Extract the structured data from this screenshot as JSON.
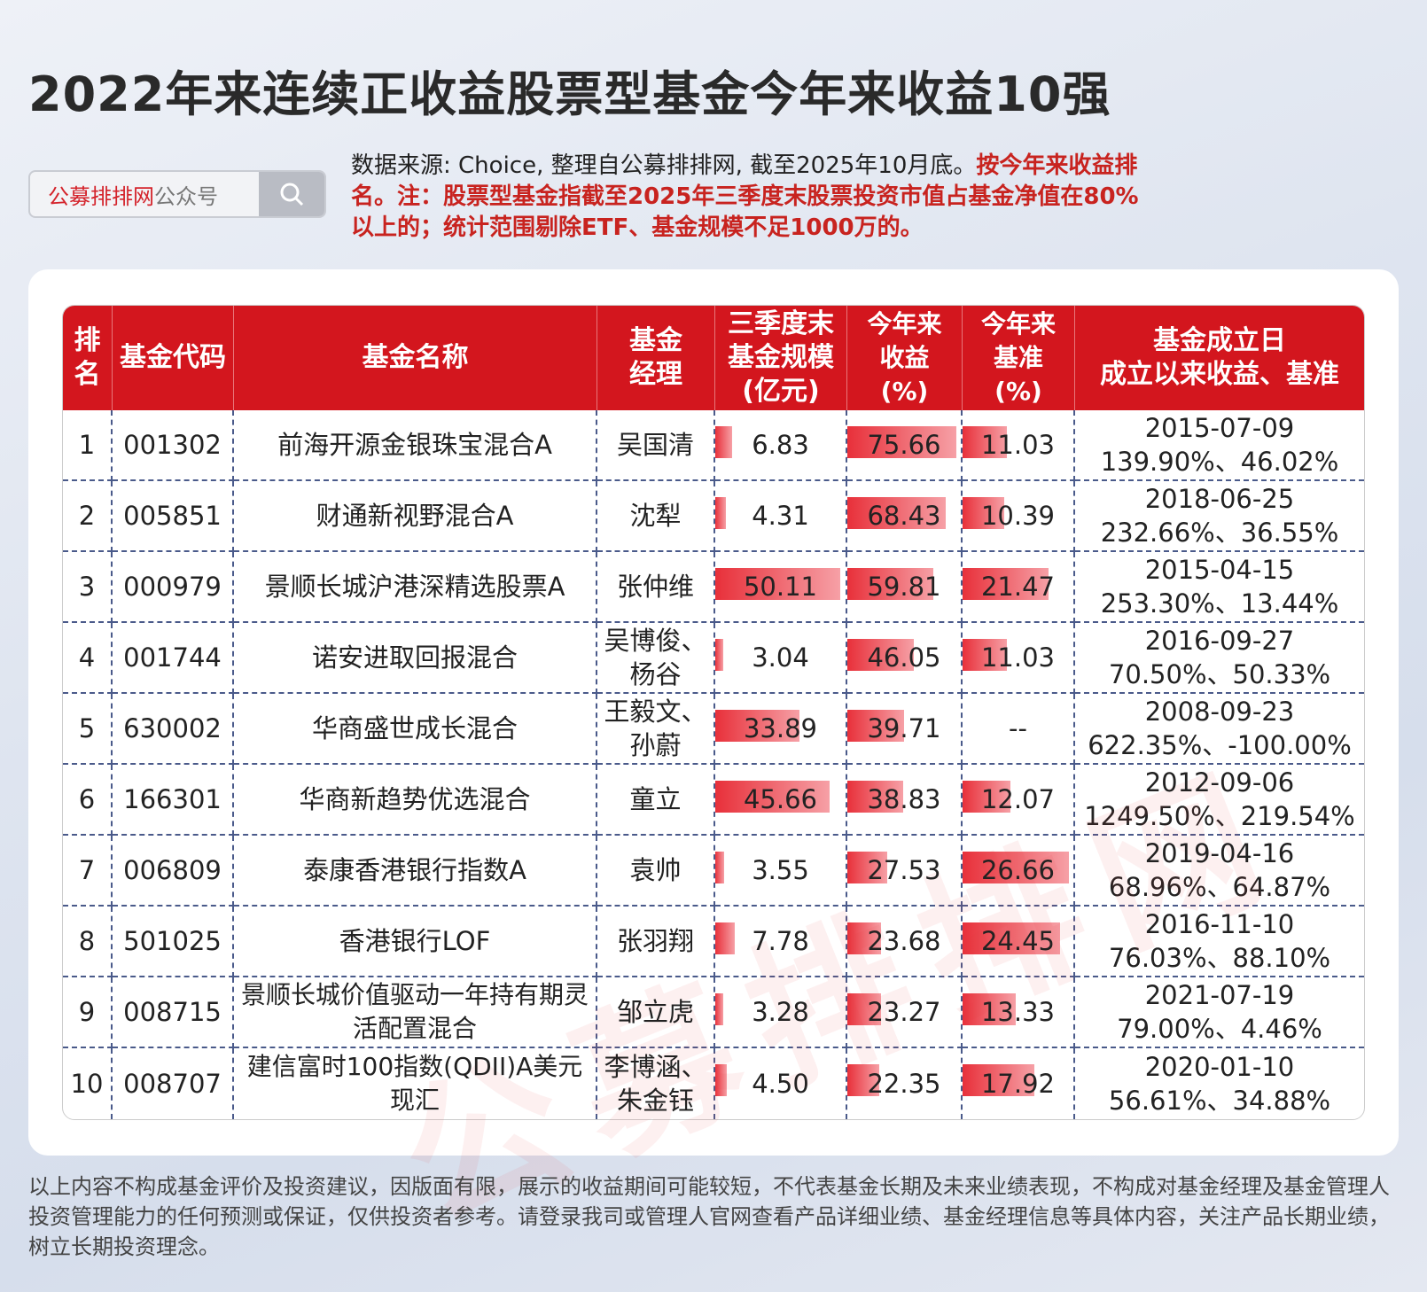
{
  "title": "2022年来连续正收益股票型基金今年来收益10强",
  "search": {
    "brand": "公募排排网",
    "suffix": "公众号",
    "icon": "search-icon"
  },
  "source": {
    "plain": "数据来源: Choice, 整理自公募排排网, 截至2025年10月底。",
    "highlight": "按今年来收益排名。注：股票型基金指截至2025年三季度末股票投资市值占基金净值在80%以上的；统计范围剔除ETF、基金规模不足1000万的。"
  },
  "watermark": "公募排排网",
  "colors": {
    "header": "#d3161e",
    "accent": "#c8231f"
  },
  "table": {
    "headers": [
      "排名",
      "基金代码",
      "基金名称",
      "基金经理",
      "三季度末基金规模(亿元)",
      "今年来收益(%)",
      "今年来基准(%)",
      "基金成立日成立以来收益、基准"
    ],
    "header_lines": [
      [
        "排",
        "名"
      ],
      [
        "基金代码"
      ],
      [
        "基金名称"
      ],
      [
        "基金",
        "经理"
      ],
      [
        "三季度末",
        "基金规模",
        "(亿元)"
      ],
      [
        "今年来",
        "收益(%)"
      ],
      [
        "今年来",
        "基准(%)"
      ],
      [
        "基金成立日",
        "成立以来收益、基准"
      ]
    ],
    "rows": [
      {
        "rank": "1",
        "code": "001302",
        "name": "前海开源金银珠宝混合A",
        "manager": "吴国清",
        "scale": "6.83",
        "ret": "75.66",
        "bench": "11.03",
        "date": "2015-07-09",
        "since": "139.90%、46.02%"
      },
      {
        "rank": "2",
        "code": "005851",
        "name": "财通新视野混合A",
        "manager": "沈犁",
        "scale": "4.31",
        "ret": "68.43",
        "bench": "10.39",
        "date": "2018-06-25",
        "since": "232.66%、36.55%"
      },
      {
        "rank": "3",
        "code": "000979",
        "name": "景顺长城沪港深精选股票A",
        "manager": "张仲维",
        "scale": "50.11",
        "ret": "59.81",
        "bench": "21.47",
        "date": "2015-04-15",
        "since": "253.30%、13.44%"
      },
      {
        "rank": "4",
        "code": "001744",
        "name": "诺安进取回报混合",
        "manager": "吴博俊、杨谷",
        "scale": "3.04",
        "ret": "46.05",
        "bench": "11.03",
        "date": "2016-09-27",
        "since": "70.50%、50.33%"
      },
      {
        "rank": "5",
        "code": "630002",
        "name": "华商盛世成长混合",
        "manager": "王毅文、孙蔚",
        "scale": "33.89",
        "ret": "39.71",
        "bench": "--",
        "date": "2008-09-23",
        "since": "622.35%、-100.00%"
      },
      {
        "rank": "6",
        "code": "166301",
        "name": "华商新趋势优选混合",
        "manager": "童立",
        "scale": "45.66",
        "ret": "38.83",
        "bench": "12.07",
        "date": "2012-09-06",
        "since": "1249.50%、219.54%"
      },
      {
        "rank": "7",
        "code": "006809",
        "name": "泰康香港银行指数A",
        "manager": "袁帅",
        "scale": "3.55",
        "ret": "27.53",
        "bench": "26.66",
        "date": "2019-04-16",
        "since": "68.96%、64.87%"
      },
      {
        "rank": "8",
        "code": "501025",
        "name": "香港银行LOF",
        "manager": "张羽翔",
        "scale": "7.78",
        "ret": "23.68",
        "bench": "24.45",
        "date": "2016-11-10",
        "since": "76.03%、88.10%"
      },
      {
        "rank": "9",
        "code": "008715",
        "name": "景顺长城价值驱动一年持有期灵活配置混合",
        "manager": "邹立虎",
        "scale": "3.28",
        "ret": "23.27",
        "bench": "13.33",
        "date": "2021-07-19",
        "since": "79.00%、4.46%"
      },
      {
        "rank": "10",
        "code": "008707",
        "name": "建信富时100指数(QDII)A美元现汇",
        "manager": "李博涵、朱金钰",
        "scale": "4.50",
        "ret": "22.35",
        "bench": "17.92",
        "date": "2020-01-10",
        "since": "56.61%、34.88%"
      }
    ]
  },
  "footer": "以上内容不构成基金评价及投资建议，因版面有限，展示的收益期间可能较短，不代表基金长期及未来业绩表现，不构成对基金经理及基金管理人投资管理能力的任何预测或保证，仅供投资者参考。请登录我司或管理人官网查看产品详细业绩、基金经理信息等具体内容，关注产品长期业绩，树立长期投资理念。"
}
